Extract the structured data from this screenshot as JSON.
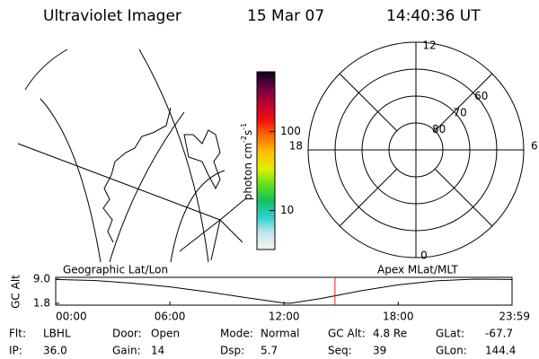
{
  "header": {
    "title": "Ultraviolet Imager",
    "date": "15 Mar 07",
    "time": "14:40:36 UT"
  },
  "colorbar": {
    "label": [
      "photon cm",
      "-2",
      "s",
      "-1"
    ],
    "log": true,
    "ylim": [
      3.2,
      575
    ],
    "yticks": [
      10,
      100
    ],
    "colors": [
      "#f4f4f4",
      "#c8e6ea",
      "#30d0d0",
      "#10c060",
      "#60e020",
      "#e0f000",
      "#ffc000",
      "#ff7000",
      "#f01010",
      "#c00030",
      "#700040",
      "#100020"
    ]
  },
  "polar": {
    "mlt_labels": [
      "12",
      "6",
      "0",
      "18"
    ],
    "rlim": [
      90,
      50
    ],
    "rings": [
      60,
      70,
      80
    ]
  },
  "orbit": {
    "type": "line",
    "ylabel": "GC Alt",
    "left_title": "Geographic Lat/Lon",
    "right_title": "Apex MLat/MLT",
    "x": [
      0,
      2,
      4,
      6,
      8,
      10,
      12,
      12.3,
      14,
      16,
      18,
      20,
      22,
      23.983
    ],
    "values": [
      8.9,
      8.6,
      7.8,
      6.7,
      5.2,
      3.5,
      1.9,
      1.8,
      3.3,
      5.5,
      7.3,
      8.5,
      9.0,
      8.9
    ],
    "color": "#000000",
    "marker": 14.677,
    "marker_color": "#e02020",
    "xlim": [
      0,
      23.983
    ],
    "xticks": [
      {
        "value": 0,
        "label": "00:00"
      },
      {
        "value": 6,
        "label": "06:00"
      },
      {
        "value": 12,
        "label": "12:00"
      },
      {
        "value": 18,
        "label": "18:00"
      },
      {
        "value": 23.983,
        "label": "23:59"
      }
    ],
    "ylim": [
      1.8,
      9.0
    ],
    "yticks": [
      {
        "value": 9.0,
        "label": "9.0"
      },
      1.8
    ]
  },
  "footer": [
    [
      {
        "label": "Flt:",
        "value": "LBHL"
      },
      {
        "label": "IP:",
        "value": "36.0"
      }
    ],
    [
      {
        "label": "Door:",
        "value": "Open"
      },
      {
        "label": "Gain:",
        "value": "14"
      }
    ],
    [
      {
        "label": "Mode:",
        "value": "Normal"
      },
      {
        "label": "Dsp:",
        "value": "5.7"
      }
    ],
    [
      {
        "label": "GC Alt:",
        "value": "4.8 Re"
      },
      {
        "label": "Seq:",
        "value": "39"
      }
    ],
    [
      {
        "label": "GLat:",
        "value": "-67.7"
      },
      {
        "label": "GLon:",
        "value": "144.4"
      }
    ]
  ]
}
